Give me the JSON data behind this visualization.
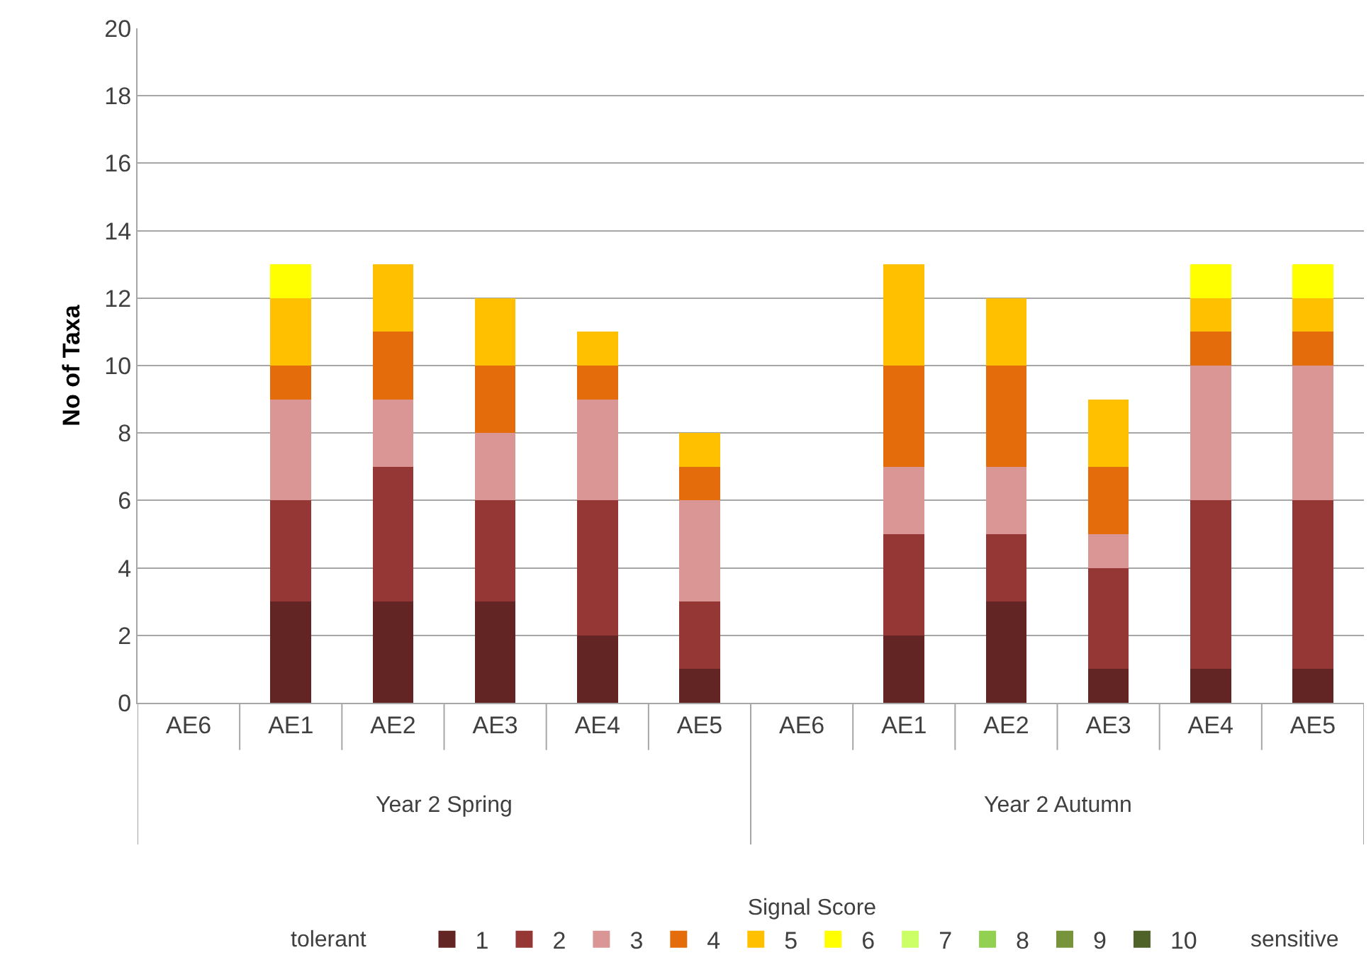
{
  "chart_data": {
    "type": "bar",
    "stacked": true,
    "ylabel": "No of Taxa",
    "legend_title": "Signal Score",
    "legend": "bottom",
    "grid": "y",
    "categories": [
      "AE6",
      "AE1",
      "AE2",
      "AE3",
      "AE4",
      "AE5",
      "AE6",
      "AE1",
      "AE2",
      "AE3",
      "AE4",
      "AE5"
    ],
    "annotations": [
      "Year 2 Spring",
      "Year 2 Autumn",
      "tolerant",
      "sensitive"
    ],
    "ylim": [
      0,
      20
    ],
    "yticks": [
      0,
      2,
      4,
      6,
      8,
      10,
      12,
      14,
      16,
      18,
      20
    ],
    "series": [
      {
        "name": "1",
        "color": "#632523",
        "values": [
          0,
          3,
          3,
          3,
          2,
          1,
          0,
          2,
          3,
          1,
          1,
          1
        ]
      },
      {
        "name": "2",
        "color": "#953735",
        "values": [
          0,
          3,
          4,
          3,
          4,
          2,
          0,
          3,
          2,
          3,
          5,
          5
        ]
      },
      {
        "name": "3",
        "color": "#d99694",
        "values": [
          0,
          3,
          2,
          2,
          3,
          3,
          0,
          2,
          2,
          1,
          4,
          4
        ]
      },
      {
        "name": "4",
        "color": "#e46c0a",
        "values": [
          0,
          1,
          2,
          2,
          1,
          1,
          0,
          3,
          3,
          2,
          1,
          1
        ]
      },
      {
        "name": "5",
        "color": "#ffc000",
        "values": [
          0,
          2,
          2,
          2,
          1,
          1,
          0,
          3,
          2,
          2,
          1,
          1
        ]
      },
      {
        "name": "6",
        "color": "#ffff00",
        "values": [
          0,
          1,
          0,
          0,
          0,
          0,
          0,
          0,
          0,
          0,
          1,
          1
        ]
      },
      {
        "name": "7",
        "color": "#ccff66",
        "values": [
          0,
          0,
          0,
          0,
          0,
          0,
          0,
          0,
          0,
          0,
          0,
          0
        ]
      },
      {
        "name": "8",
        "color": "#92d050",
        "values": [
          0,
          0,
          0,
          0,
          0,
          0,
          0,
          0,
          0,
          0,
          0,
          0
        ]
      },
      {
        "name": "9",
        "color": "#77933c",
        "values": [
          0,
          0,
          0,
          0,
          0,
          0,
          0,
          0,
          0,
          0,
          0,
          0
        ]
      },
      {
        "name": "10",
        "color": "#4f6228",
        "values": [
          0,
          0,
          0,
          0,
          0,
          0,
          0,
          0,
          0,
          0,
          0,
          0
        ]
      }
    ]
  }
}
